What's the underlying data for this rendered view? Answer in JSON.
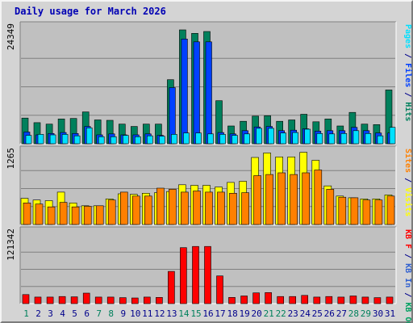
{
  "title": "Daily usage for March 2026",
  "colors": {
    "background": "#d4d4d4",
    "plot_bg": "#c0c0c0",
    "title": "#0000b4",
    "hits": "#00805c",
    "files": "#0040ff",
    "pages": "#00e0ff",
    "visits": "#ffff00",
    "sites": "#ff8000",
    "kbin": "#3060d0",
    "kbout": "#00a060",
    "kbf": "#ff0000",
    "day_normal": "#00008b",
    "day_weekend": "#00805c"
  },
  "chart_data": [
    {
      "type": "bar",
      "name": "hits-files-pages",
      "categories": [
        "1",
        "2",
        "3",
        "4",
        "5",
        "6",
        "7",
        "8",
        "9",
        "10",
        "11",
        "12",
        "13",
        "14",
        "15",
        "16",
        "17",
        "18",
        "19",
        "20",
        "21",
        "22",
        "23",
        "24",
        "25",
        "26",
        "27",
        "28",
        "29",
        "30",
        "31"
      ],
      "weekend": [
        1,
        7,
        8,
        14,
        15,
        21,
        22,
        28,
        29
      ],
      "ylabel_value": "24349",
      "axis_labels": [
        {
          "text": "Pages",
          "color": "#00e0ff"
        },
        {
          "text": " / ",
          "color": "#00008b"
        },
        {
          "text": "Files",
          "color": "#0040ff"
        },
        {
          "text": " / ",
          "color": "#00008b"
        },
        {
          "text": "Hits",
          "color": "#00805c"
        }
      ],
      "ylim": [
        0,
        24349
      ],
      "series": [
        {
          "name": "Hits",
          "color": "#00805c",
          "values": [
            5500,
            4500,
            4200,
            5300,
            5400,
            6800,
            5100,
            5000,
            4200,
            3700,
            4200,
            4200,
            13700,
            24349,
            23600,
            24000,
            9200,
            3800,
            4800,
            5900,
            6000,
            4800,
            5100,
            6300,
            4700,
            5300,
            3800,
            6700,
            4200,
            4100,
            11500
          ]
        },
        {
          "name": "Files",
          "color": "#0040ff",
          "values": [
            2500,
            1900,
            2200,
            2400,
            2200,
            3700,
            1900,
            2100,
            1900,
            1900,
            2100,
            1800,
            12000,
            22400,
            21800,
            21800,
            2400,
            2100,
            2800,
            3600,
            3700,
            2800,
            2900,
            3200,
            2700,
            2800,
            2800,
            3500,
            2800,
            2300,
            2300
          ]
        },
        {
          "name": "Pages",
          "color": "#00e0ff",
          "values": [
            1800,
            2000,
            1900,
            2000,
            1700,
            3400,
            1500,
            1500,
            1800,
            1500,
            1700,
            1600,
            2000,
            2300,
            2300,
            2100,
            2000,
            1800,
            2100,
            3300,
            3300,
            2300,
            2400,
            3100,
            2200,
            2100,
            2200,
            2800,
            2200,
            1700,
            3500
          ]
        }
      ]
    },
    {
      "type": "bar",
      "name": "visits-sites",
      "categories": [
        "1",
        "2",
        "3",
        "4",
        "5",
        "6",
        "7",
        "8",
        "9",
        "10",
        "11",
        "12",
        "13",
        "14",
        "15",
        "16",
        "17",
        "18",
        "19",
        "20",
        "21",
        "22",
        "23",
        "24",
        "25",
        "26",
        "27",
        "28",
        "29",
        "30",
        "31"
      ],
      "ylabel_value": "1265",
      "axis_labels": [
        {
          "text": "Sites",
          "color": "#ff8000"
        },
        {
          "text": " / ",
          "color": "#00008b"
        },
        {
          "text": "Visits",
          "color": "#ffff00"
        }
      ],
      "ylim": [
        0,
        1265
      ],
      "series": [
        {
          "name": "Visits",
          "color": "#ffff00",
          "values": [
            460,
            430,
            420,
            570,
            380,
            330,
            330,
            450,
            540,
            530,
            550,
            560,
            580,
            700,
            690,
            690,
            660,
            740,
            760,
            1180,
            1260,
            1190,
            1190,
            1270,
            1130,
            680,
            500,
            470,
            450,
            450,
            520
          ]
        },
        {
          "name": "Sites",
          "color": "#ff8000",
          "values": [
            380,
            360,
            310,
            390,
            310,
            320,
            330,
            430,
            570,
            500,
            500,
            640,
            620,
            570,
            590,
            570,
            570,
            550,
            560,
            860,
            880,
            910,
            880,
            910,
            960,
            620,
            480,
            470,
            430,
            430,
            500
          ]
        }
      ]
    },
    {
      "type": "bar",
      "name": "kb-traffic",
      "categories": [
        "1",
        "2",
        "3",
        "4",
        "5",
        "6",
        "7",
        "8",
        "9",
        "10",
        "11",
        "12",
        "13",
        "14",
        "15",
        "16",
        "17",
        "18",
        "19",
        "20",
        "21",
        "22",
        "23",
        "24",
        "25",
        "26",
        "27",
        "28",
        "29",
        "30",
        "31"
      ],
      "ylabel_value": "121342",
      "axis_labels": [
        {
          "text": "KB F",
          "color": "#ff0000"
        },
        {
          "text": " / ",
          "color": "#00008b"
        },
        {
          "text": "KB In",
          "color": "#3060d0"
        },
        {
          "text": " / ",
          "color": "#00008b"
        },
        {
          "text": "KB Out",
          "color": "#00a060"
        }
      ],
      "ylim": [
        0,
        121342
      ],
      "series": [
        {
          "name": "KB F",
          "color": "#ff0000",
          "values": [
            16000,
            11500,
            11500,
            12500,
            12000,
            18500,
            11500,
            11500,
            10500,
            10000,
            11500,
            11000,
            57000,
            99000,
            101000,
            101000,
            49000,
            11000,
            13500,
            19000,
            19500,
            12500,
            12500,
            14500,
            11500,
            12500,
            11500,
            13500,
            11500,
            10500,
            11500
          ]
        }
      ]
    }
  ]
}
